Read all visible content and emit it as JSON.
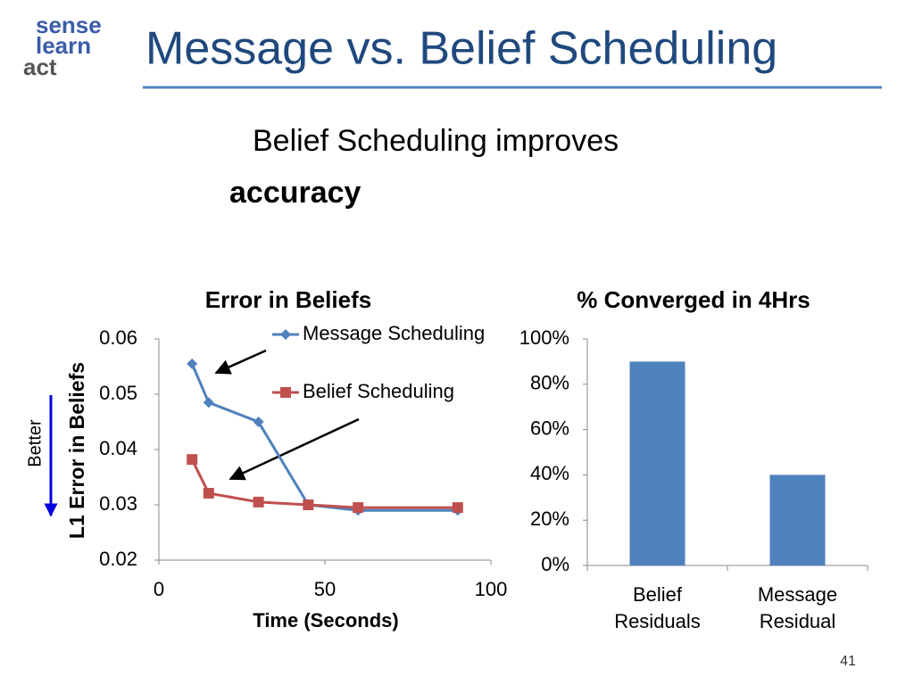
{
  "logo": [
    "sense",
    "learn",
    "act"
  ],
  "title": "Message vs. Belief Scheduling",
  "subtitle": "Belief Scheduling improves",
  "subtitle_emphasis": "accuracy",
  "side_label": "Better",
  "page_number": "41",
  "chart_data": [
    {
      "type": "line",
      "title": "Error in Beliefs",
      "x_label": "Time (Seconds)",
      "y_label": "L1 Error in Beliefs",
      "x": [
        10,
        15,
        30,
        45,
        60,
        90
      ],
      "series": [
        {
          "name": "Message Scheduling",
          "color": "#4f81bd",
          "marker": "diamond",
          "values": [
            0.0555,
            0.0485,
            0.045,
            0.03,
            0.029,
            0.029
          ]
        },
        {
          "name": "Belief Scheduling",
          "color": "#c0504d",
          "marker": "square",
          "values": [
            0.0382,
            0.0321,
            0.0305,
            0.03,
            0.0295,
            0.0295
          ]
        }
      ],
      "xlim": [
        0,
        100
      ],
      "xticks": [
        0,
        50,
        100
      ],
      "ylim": [
        0.02,
        0.06
      ],
      "yticks": [
        0.02,
        0.03,
        0.04,
        0.05,
        0.06
      ],
      "legend": "top-right",
      "grid": false
    },
    {
      "type": "bar",
      "title": "% Converged in 4Hrs",
      "categories": [
        "Belief Residuals",
        "Message Residual"
      ],
      "values": [
        90,
        40
      ],
      "color": "#4f81bd",
      "ylim": [
        0,
        100
      ],
      "yticks": [
        {
          "value": 0,
          "label": "0%"
        },
        {
          "value": 20,
          "label": "20%"
        },
        {
          "value": 40,
          "label": "40%"
        },
        {
          "value": 60,
          "label": "60%"
        },
        {
          "value": 80,
          "label": "80%"
        },
        {
          "value": 100,
          "label": "100%"
        }
      ],
      "grid": false
    }
  ]
}
